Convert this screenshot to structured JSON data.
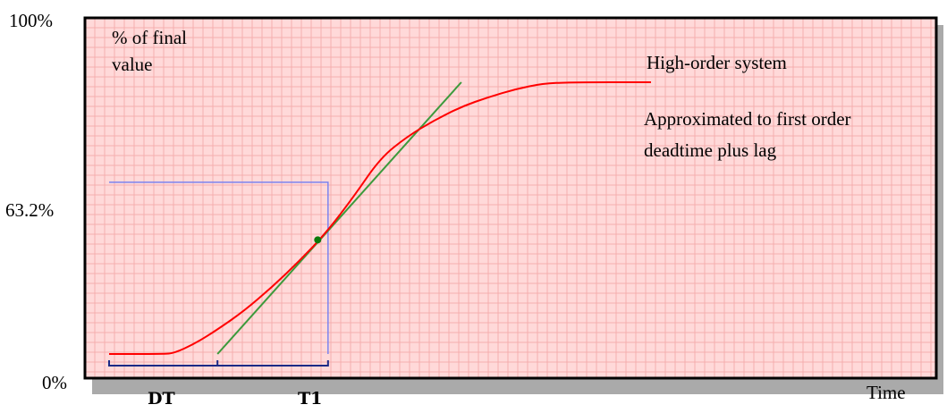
{
  "chart_data": {
    "type": "line",
    "y_ticks": [
      "100%",
      "63.2%",
      "0%"
    ],
    "ylabel": "% of final value",
    "xlabel": "Time",
    "xlim": [
      0,
      100
    ],
    "ylim": [
      0,
      100
    ],
    "grid": true,
    "colors": {
      "plot_bg": "#ffd9d9",
      "grid": "#f4aeae",
      "frame": "#000000",
      "curve": "#ff0000",
      "tangent": "#3c9a3c",
      "marker": "#0a7a0a",
      "guide": "#7b84f0",
      "bracket": "#1b2a86",
      "shadow": "#aaaaaa"
    },
    "series": [
      {
        "name": "High-order system",
        "x": [
          0,
          10,
          12,
          16,
          20,
          25,
          30,
          35,
          40,
          45,
          50,
          55,
          60,
          65,
          70,
          75,
          80,
          85,
          100
        ],
        "y": [
          0,
          0,
          0.3,
          4,
          9,
          16,
          24.5,
          34,
          44.5,
          57.5,
          72,
          80,
          86,
          91,
          94.5,
          97.5,
          99.5,
          100,
          100
        ]
      }
    ],
    "tangent": {
      "name": "first order deadtime plus lag",
      "x": [
        20,
        65
      ],
      "y": [
        0,
        100
      ]
    },
    "marker_point": {
      "x": 38.5,
      "y": 42
    },
    "level_63_2": {
      "y": 63.2,
      "x": 40.4
    },
    "annotations": {
      "dt": "DT",
      "t1": "T1",
      "line1": "Approximated to first order",
      "line2": "deadtime plus lag"
    }
  }
}
